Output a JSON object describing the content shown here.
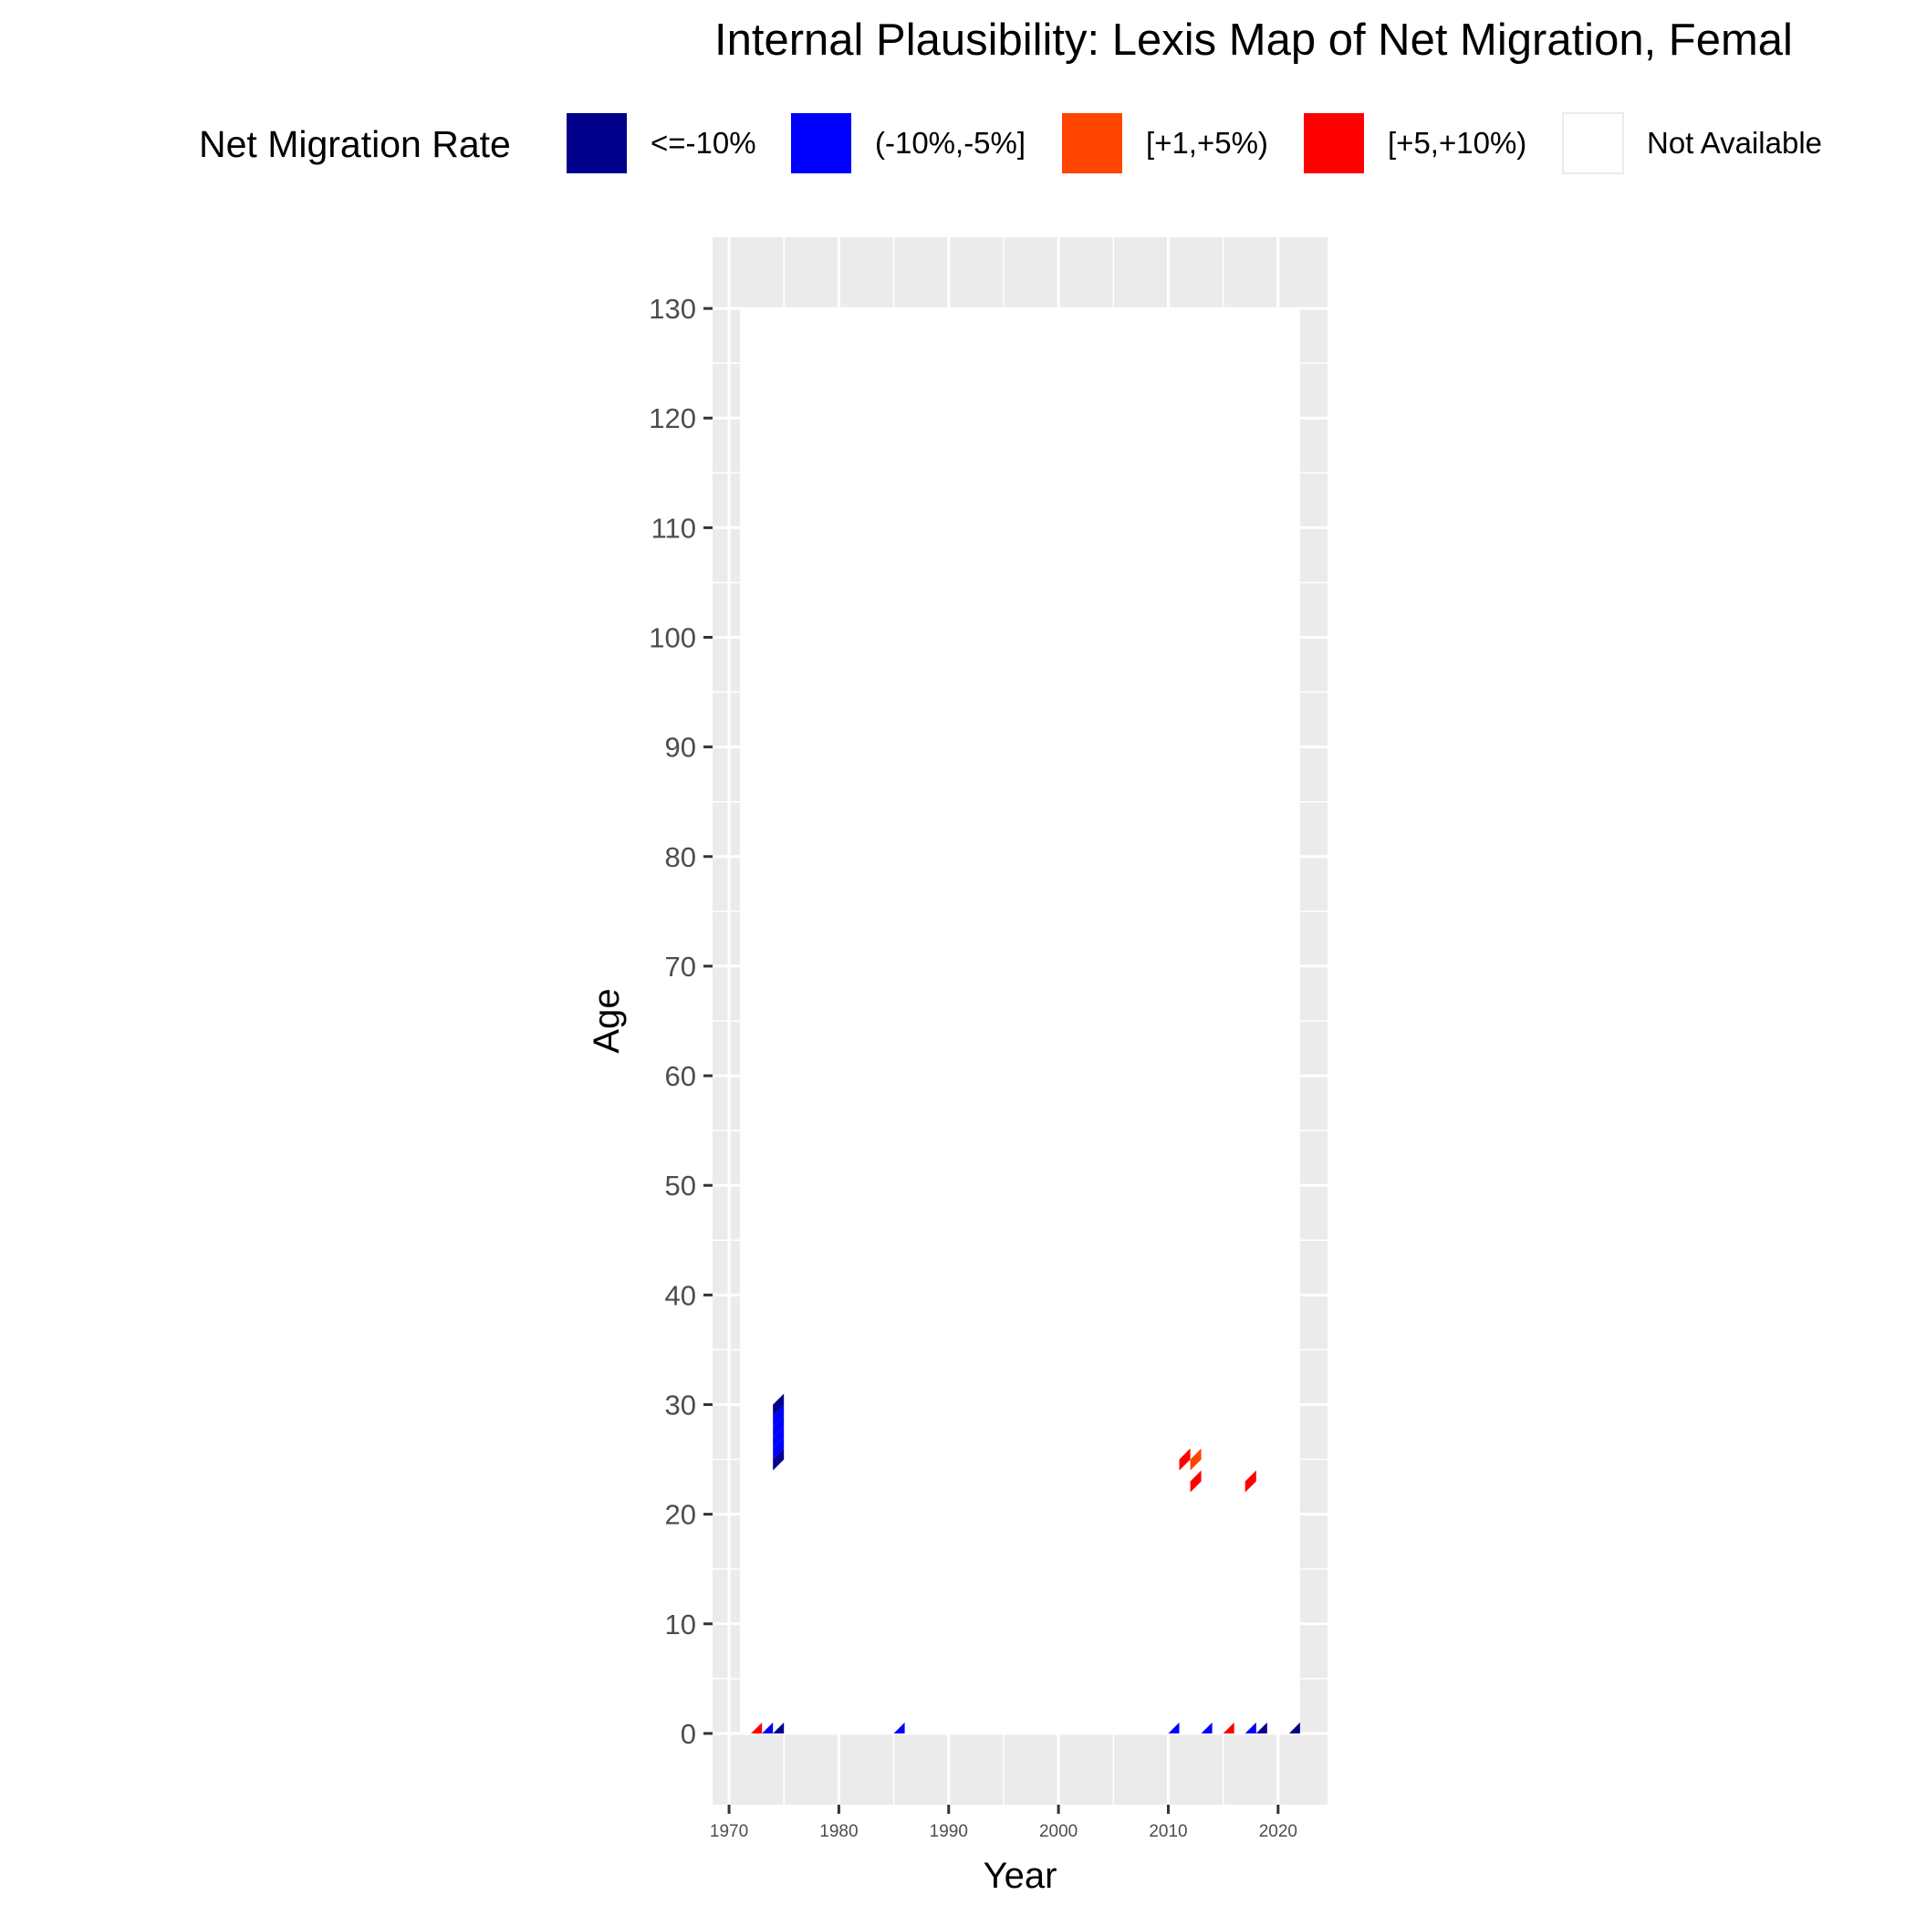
{
  "chart_data": {
    "type": "heatmap",
    "title": "Internal Plausibility: Lexis Map of Net Migration, Femal",
    "xlabel": "Year",
    "ylabel": "Age",
    "xlim": [
      1968.5,
      2024.5
    ],
    "ylim": [
      -6.5,
      136.5
    ],
    "panel_data_region": {
      "x": [
        1971,
        2022
      ],
      "y": [
        0,
        130
      ]
    },
    "x_ticks": [
      1970,
      1980,
      1990,
      2000,
      2010,
      2020
    ],
    "y_ticks": [
      0,
      10,
      20,
      30,
      40,
      50,
      60,
      70,
      80,
      90,
      100,
      110,
      120,
      130
    ],
    "grid": true,
    "legend": {
      "title": "Net Migration Rate",
      "placement": "top",
      "entries": [
        {
          "label": "<=-10%",
          "color": "#00008B"
        },
        {
          "label": "(-10%,-5%]",
          "color": "#0000FF"
        },
        {
          "label": "[+1,+5%)",
          "color": "#FF4500"
        },
        {
          "label": "[+5,+10%)",
          "color": "#FF0000"
        },
        {
          "label": "Not Available",
          "color": "#FFFFFF"
        }
      ]
    },
    "cells": [
      {
        "year": 1974,
        "age": 24,
        "category": "<=-10%"
      },
      {
        "year": 1974,
        "age": 25,
        "category": "(-10%,-5%]"
      },
      {
        "year": 1974,
        "age": 26,
        "category": "(-10%,-5%]"
      },
      {
        "year": 1974,
        "age": 27,
        "category": "(-10%,-5%]"
      },
      {
        "year": 1974,
        "age": 28,
        "category": "(-10%,-5%]"
      },
      {
        "year": 1974,
        "age": 29,
        "category": "<=-10%"
      },
      {
        "year": 2011,
        "age": 24,
        "category": "[+5,+10%)"
      },
      {
        "year": 2012,
        "age": 24,
        "category": "[+1,+5%)"
      },
      {
        "year": 2012,
        "age": 22,
        "category": "[+5,+10%)"
      },
      {
        "year": 2017,
        "age": 22,
        "category": "[+5,+10%)"
      },
      {
        "year": 1972,
        "age": 0,
        "category": "[+5,+10%)"
      },
      {
        "year": 1973,
        "age": 0,
        "category": "(-10%,-5%]"
      },
      {
        "year": 1974,
        "age": 0,
        "category": "<=-10%"
      },
      {
        "year": 1985,
        "age": 0,
        "category": "(-10%,-5%]"
      },
      {
        "year": 2010,
        "age": 0,
        "category": "(-10%,-5%]"
      },
      {
        "year": 2013,
        "age": 0,
        "category": "(-10%,-5%]"
      },
      {
        "year": 2015,
        "age": 0,
        "category": "[+5,+10%)"
      },
      {
        "year": 2017,
        "age": 0,
        "category": "(-10%,-5%]"
      },
      {
        "year": 2018,
        "age": 0,
        "category": "<=-10%"
      },
      {
        "year": 2021,
        "age": 0,
        "category": "<=-10%"
      }
    ]
  }
}
